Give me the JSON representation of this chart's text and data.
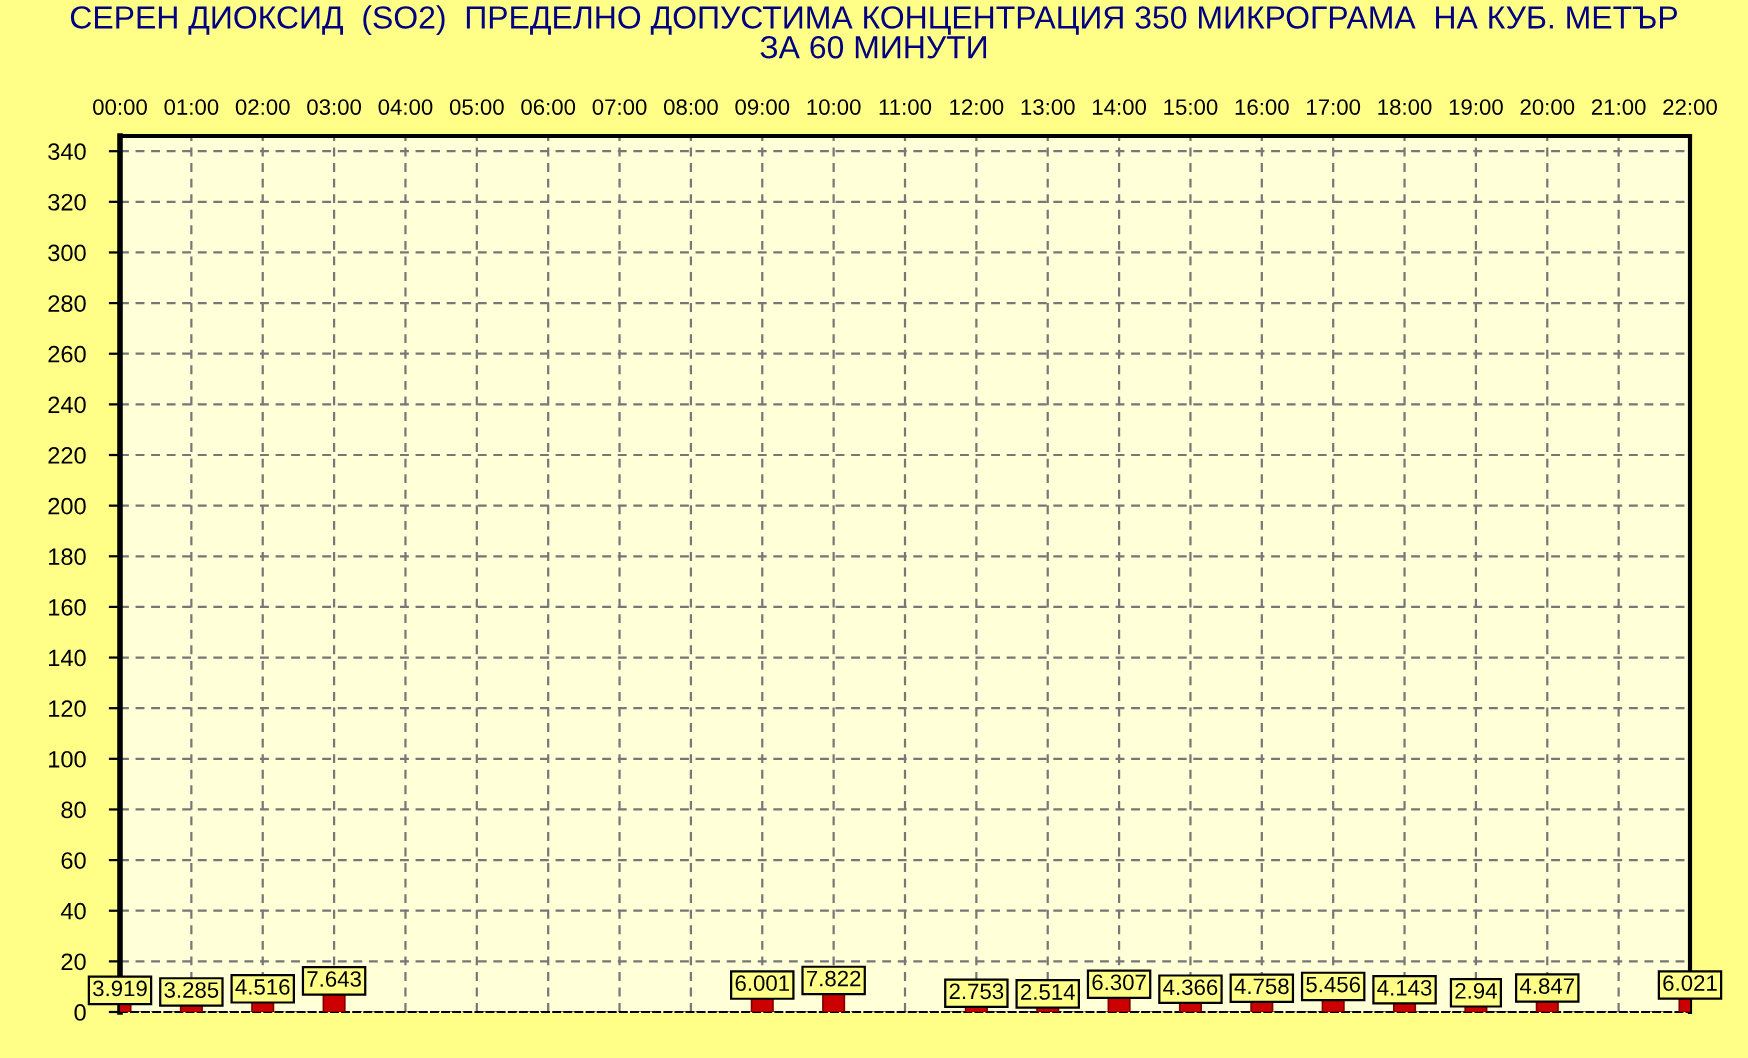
{
  "chart_data": {
    "type": "bar",
    "title": "СЕРЕН ДИОКСИД  (SO2)  ПРЕДЕЛНО ДОПУСТИМА КОНЦЕНТРАЦИЯ 350 МИКРОГРАМА  НА КУБ. МЕТЪР\nЗА 60 МИНУТИ",
    "categories": [
      "00:00",
      "01:00",
      "02:00",
      "03:00",
      "04:00",
      "05:00",
      "06:00",
      "07:00",
      "08:00",
      "09:00",
      "10:00",
      "11:00",
      "12:00",
      "13:00",
      "14:00",
      "15:00",
      "16:00",
      "17:00",
      "18:00",
      "19:00",
      "20:00",
      "21:00",
      "22:00"
    ],
    "values": [
      3.919,
      3.285,
      4.516,
      7.643,
      null,
      null,
      null,
      null,
      null,
      6.001,
      7.822,
      null,
      2.753,
      2.514,
      6.307,
      4.366,
      4.758,
      5.456,
      4.143,
      2.94,
      4.847,
      null,
      6.021
    ],
    "color": "#cc0000",
    "ylim": [
      0,
      346
    ],
    "yticks": [
      0,
      20,
      40,
      60,
      80,
      100,
      120,
      140,
      160,
      180,
      200,
      220,
      240,
      260,
      280,
      300,
      320,
      340
    ],
    "grid": true,
    "data_labels": true
  }
}
